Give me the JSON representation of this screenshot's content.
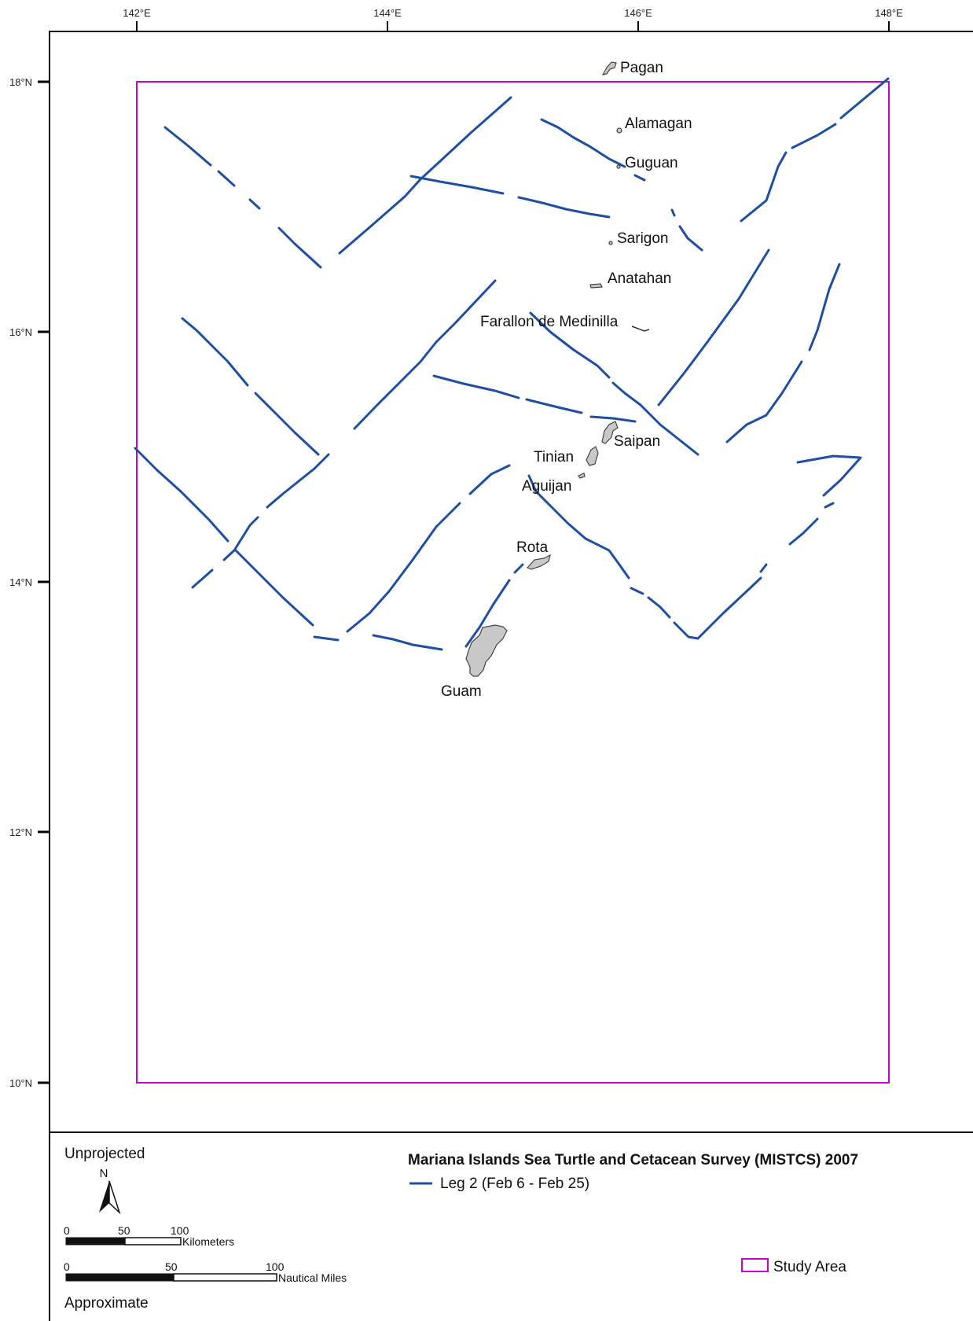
{
  "axes": {
    "lon_ticks": [
      "142°E",
      "144°E",
      "146°E",
      "148°E"
    ],
    "lat_ticks": [
      "18°N",
      "16°N",
      "14°N",
      "12°N",
      "10°N"
    ]
  },
  "islands": [
    {
      "name": "Pagan",
      "label": "Pagan"
    },
    {
      "name": "Alamagan",
      "label": "Alamagan"
    },
    {
      "name": "Guguan",
      "label": "Guguan"
    },
    {
      "name": "Sarigon",
      "label": "Sarigon"
    },
    {
      "name": "Anatahan",
      "label": "Anatahan"
    },
    {
      "name": "Farallon de Medinilla",
      "label": "Farallon de Medinilla"
    },
    {
      "name": "Saipan",
      "label": "Saipan"
    },
    {
      "name": "Tinian",
      "label": "Tinian"
    },
    {
      "name": "Aguijan",
      "label": "Aguijan"
    },
    {
      "name": "Rota",
      "label": "Rota"
    },
    {
      "name": "Guam",
      "label": "Guam"
    }
  ],
  "legend": {
    "projection": "Unprojected",
    "north_label": "N",
    "title": "Mariana Islands Sea Turtle and Cetacean Survey (MISTCS) 2007",
    "track_label": "Leg 2 (Feb 6 - Feb 25)",
    "study_area_label": "Study Area",
    "scale_km": {
      "ticks": [
        "0",
        "50",
        "100"
      ],
      "unit": "Kilometers"
    },
    "scale_nm": {
      "ticks": [
        "0",
        "50",
        "100"
      ],
      "unit": "Nautical Miles"
    },
    "note": "Approximate"
  },
  "colors": {
    "track": "#1f4fa3",
    "study_area": "#cc00cc",
    "island_fill": "#c8c8c8"
  },
  "study_area": {
    "lon_min": 142,
    "lon_max": 148,
    "lat_min": 10,
    "lat_max": 18
  }
}
